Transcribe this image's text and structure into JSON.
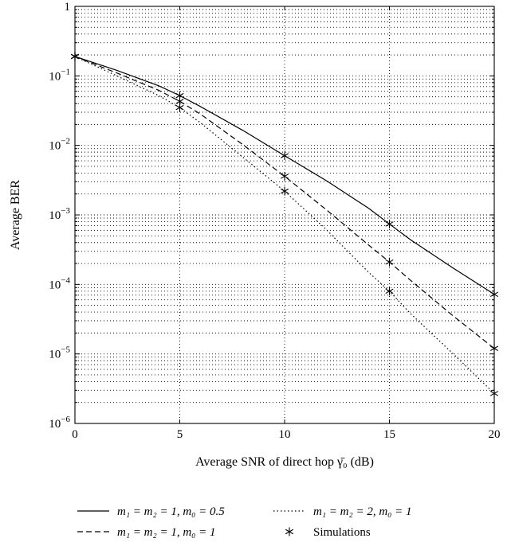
{
  "chart_data": {
    "type": "line",
    "xlabel": "Average SNR of direct hop γ̄₀ (dB)",
    "ylabel": "Average BER",
    "xlim": [
      0,
      20
    ],
    "ylim": [
      1e-06,
      1
    ],
    "yscale": "log",
    "grid": true,
    "legend_placement": "bottom",
    "x_ticks": [
      0,
      5,
      10,
      15,
      20
    ],
    "x_tick_labels": [
      "0",
      "5",
      "10",
      "15",
      "20"
    ],
    "y_tick_labels": [
      {
        "value": 1,
        "base": "1",
        "exp": ""
      },
      {
        "value": 0.1,
        "base": "10",
        "exp": "−1"
      },
      {
        "value": 0.01,
        "base": "10",
        "exp": "−2"
      },
      {
        "value": 0.001,
        "base": "10",
        "exp": "−3"
      },
      {
        "value": 0.0001,
        "base": "10",
        "exp": "−4"
      },
      {
        "value": 1e-05,
        "base": "10",
        "exp": "−5"
      },
      {
        "value": 1e-06,
        "base": "10",
        "exp": "−6"
      }
    ],
    "series": [
      {
        "name": "m₁ = m₂ = 1, m₀ = 0.5",
        "style": "solid",
        "x": [
          0,
          2,
          4,
          5,
          6,
          8,
          10,
          12,
          14,
          15,
          16,
          18,
          20
        ],
        "y": [
          0.19,
          0.12,
          0.072,
          0.052,
          0.036,
          0.0165,
          0.0071,
          0.0031,
          0.00125,
          0.00074,
          0.00044,
          0.000175,
          7.2e-05
        ]
      },
      {
        "name": "m₁ = m₂ = 1, m₀ = 1",
        "style": "dashed",
        "x": [
          0,
          2,
          4,
          5,
          6,
          8,
          10,
          12,
          14,
          15,
          16,
          18,
          20
        ],
        "y": [
          0.19,
          0.11,
          0.062,
          0.043,
          0.028,
          0.0103,
          0.0036,
          0.00118,
          0.00037,
          0.00021,
          0.000115,
          3.6e-05,
          1.2e-05
        ]
      },
      {
        "name": "m₁ = m₂ = 2, m₀ = 1",
        "style": "dotted",
        "x": [
          0,
          2,
          4,
          5,
          6,
          8,
          10,
          12,
          14,
          15,
          16,
          18,
          20
        ],
        "y": [
          0.19,
          0.1,
          0.052,
          0.035,
          0.021,
          0.0068,
          0.0022,
          0.00061,
          0.00015,
          8e-05,
          3.82e-05,
          1.03e-05,
          2.7e-06
        ]
      }
    ],
    "simulations": {
      "name": "Simulations",
      "marker": "asterisk",
      "points": [
        {
          "x": 0,
          "y": 0.19
        },
        {
          "x": 5,
          "y": 0.052
        },
        {
          "x": 10,
          "y": 0.0071
        },
        {
          "x": 15,
          "y": 0.00074
        },
        {
          "x": 20,
          "y": 7.2e-05
        },
        {
          "x": 0,
          "y": 0.19
        },
        {
          "x": 5,
          "y": 0.043
        },
        {
          "x": 10,
          "y": 0.0036
        },
        {
          "x": 15,
          "y": 0.00021
        },
        {
          "x": 20,
          "y": 1.2e-05
        },
        {
          "x": 0,
          "y": 0.19
        },
        {
          "x": 5,
          "y": 0.035
        },
        {
          "x": 10,
          "y": 0.0022
        },
        {
          "x": 15,
          "y": 8e-05
        },
        {
          "x": 20,
          "y": 2.7e-06
        }
      ]
    }
  }
}
